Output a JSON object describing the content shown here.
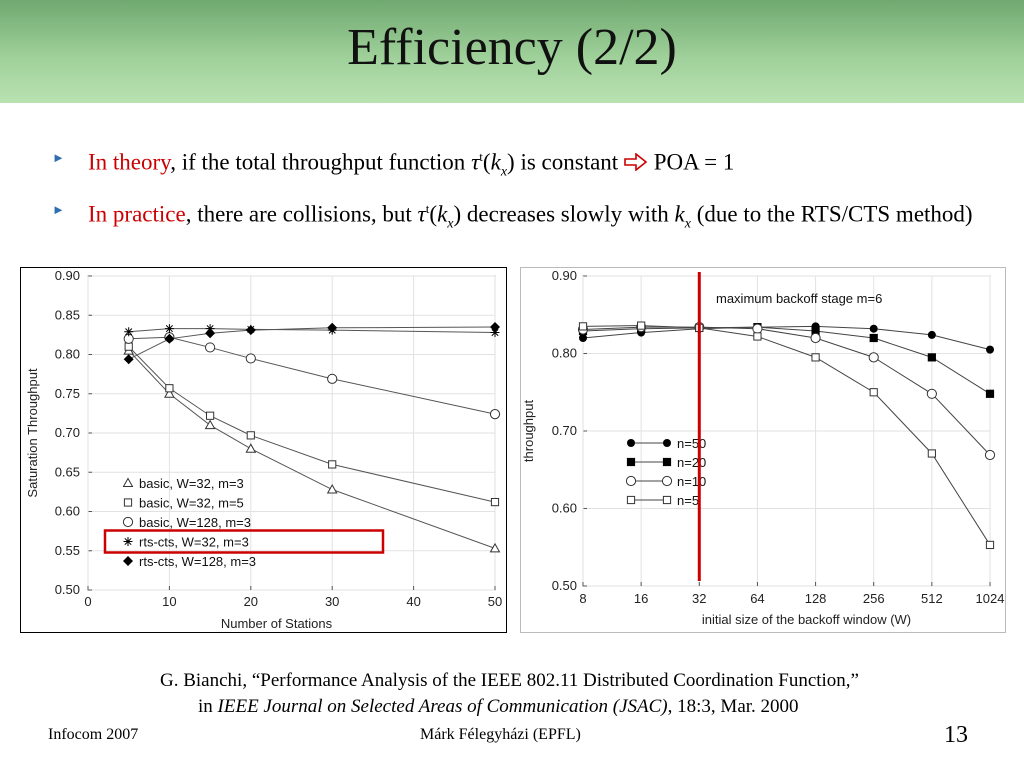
{
  "slide": {
    "title": "Efficiency (2/2)",
    "bullets": [
      {
        "lead": "In theory",
        "t1": ", if the total throughput function ",
        "tau": "τ",
        "sup": "t",
        "k": "k",
        "sub": "x",
        "t2": ") is constant ",
        "t3": " POA = 1"
      },
      {
        "lead": "In practice",
        "t1": ", there are collisions, but ",
        "tau": "τ",
        "sup": "t",
        "k": "k",
        "sub": "x",
        "t2": ") decreases slowly with ",
        "k2": "k",
        "sub2": "x",
        "t3": " (due to the RTS/CTS method)"
      }
    ],
    "caption": {
      "line1": "G. Bianchi, “Performance Analysis of the IEEE 802.11 Distributed Coordination Function,”",
      "prefix": "in ",
      "journal": "IEEE Journal on Selected Areas of Communication (JSAC)",
      "suffix": ", 18:3, Mar. 2000"
    },
    "footer": {
      "left": "Infocom 2007",
      "center": "Márk Félegyházi (EPFL)",
      "page": "13"
    },
    "colors": {
      "accent_red": "#cc0000",
      "bullet_marker": "#2f6fb0",
      "header_green": "#9fd09a"
    },
    "icons": {
      "bullet": "triangle-right-icon",
      "implies": "outline-arrow-right-icon"
    }
  },
  "chart_data": [
    {
      "type": "line",
      "title": "",
      "xlabel": "Number of Stations",
      "ylabel": "Saturation Throughput",
      "xlim": [
        0,
        50
      ],
      "ylim": [
        0.5,
        0.9
      ],
      "xticks": [
        0,
        10,
        20,
        30,
        40,
        50
      ],
      "yticks": [
        0.5,
        0.55,
        0.6,
        0.65,
        0.7,
        0.75,
        0.8,
        0.85,
        0.9
      ],
      "legend_position": "bottom-left",
      "highlighted_legend_entry": "rts-cts, W=32, m=3",
      "highlight_color": "#cc0000",
      "series": [
        {
          "name": "basic, W=32, m=3",
          "marker": "triangle-open",
          "x": [
            5,
            10,
            15,
            20,
            30,
            50
          ],
          "y": [
            0.805,
            0.75,
            0.71,
            0.68,
            0.628,
            0.553
          ]
        },
        {
          "name": "basic, W=32, m=5",
          "marker": "square-open",
          "x": [
            5,
            10,
            15,
            20,
            30,
            50
          ],
          "y": [
            0.81,
            0.757,
            0.722,
            0.697,
            0.66,
            0.612
          ]
        },
        {
          "name": "basic, W=128, m=3",
          "marker": "circle-open",
          "x": [
            5,
            10,
            15,
            20,
            30,
            50
          ],
          "y": [
            0.82,
            0.822,
            0.809,
            0.795,
            0.769,
            0.724
          ]
        },
        {
          "name": "rts-cts, W=32, m=3",
          "marker": "star",
          "x": [
            5,
            10,
            15,
            20,
            30,
            50
          ],
          "y": [
            0.829,
            0.833,
            0.833,
            0.832,
            0.831,
            0.828
          ]
        },
        {
          "name": "rts-cts, W=128, m=3",
          "marker": "diamond-filled",
          "x": [
            5,
            10,
            15,
            20,
            30,
            50
          ],
          "y": [
            0.794,
            0.82,
            0.827,
            0.831,
            0.834,
            0.835
          ]
        }
      ]
    },
    {
      "type": "line",
      "title": "maximum backoff stage m=6",
      "xlabel": "initial size of the backoff window (W)",
      "ylabel": "throughput",
      "xscale": "log2",
      "xlim": [
        8,
        1024
      ],
      "ylim": [
        0.5,
        0.9
      ],
      "xticks": [
        8,
        16,
        32,
        64,
        128,
        256,
        512,
        1024
      ],
      "yticks": [
        0.5,
        0.6,
        0.7,
        0.8,
        0.9
      ],
      "ytick_labels": [
        "0.50",
        "0.60",
        "0.70",
        "0.80",
        "0.90"
      ],
      "legend_position": "middle-left",
      "vertical_marker": {
        "x": 32,
        "color": "#cc0000"
      },
      "series": [
        {
          "name": "n=50",
          "marker": "circle-filled",
          "x": [
            8,
            16,
            32,
            64,
            128,
            256,
            512,
            1024
          ],
          "y": [
            0.82,
            0.827,
            0.832,
            0.834,
            0.835,
            0.832,
            0.824,
            0.805
          ]
        },
        {
          "name": "n=20",
          "marker": "square-filled",
          "x": [
            8,
            16,
            32,
            64,
            128,
            256,
            512,
            1024
          ],
          "y": [
            0.829,
            0.832,
            0.833,
            0.834,
            0.829,
            0.82,
            0.795,
            0.748
          ]
        },
        {
          "name": "n=10",
          "marker": "circle-open",
          "x": [
            8,
            16,
            32,
            64,
            128,
            256,
            512,
            1024
          ],
          "y": [
            0.831,
            0.834,
            0.834,
            0.832,
            0.82,
            0.795,
            0.748,
            0.669
          ]
        },
        {
          "name": "n=5",
          "marker": "square-open",
          "x": [
            8,
            16,
            32,
            64,
            128,
            256,
            512,
            1024
          ],
          "y": [
            0.835,
            0.836,
            0.833,
            0.822,
            0.795,
            0.75,
            0.671,
            0.553
          ]
        }
      ]
    }
  ]
}
